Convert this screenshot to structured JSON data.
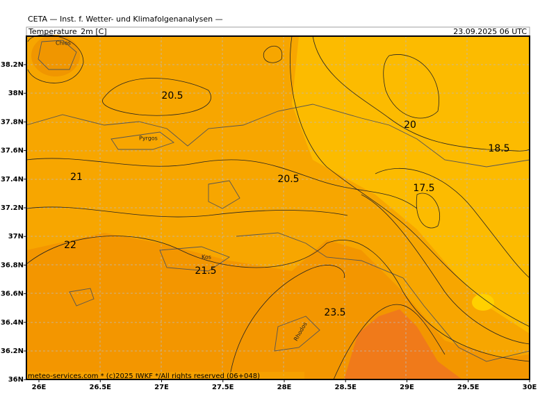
{
  "header": {
    "source": "CETA — Inst. f. Wetter- und Klimafolgenanalysen —",
    "field": "Temperature_2m [C]",
    "time": "23.09.2025 06 UTC"
  },
  "contour_labels": [
    "20.5",
    "20",
    "18.5",
    "21",
    "20.5",
    "17.5",
    "22",
    "21.5",
    "23.5"
  ],
  "places": [
    "Chios",
    "Pyrgos",
    "Kos",
    "Rhodos"
  ],
  "lon_labels": [
    "26E",
    "26.5E",
    "27E",
    "27.5E",
    "28E",
    "28.5E",
    "29E",
    "29.5E",
    "30E"
  ],
  "lat_labels": [
    "38.2N",
    "38N",
    "37.8N",
    "37.6N",
    "37.4N",
    "37.2N",
    "37N",
    "36.8N",
    "36.6N",
    "36.4N",
    "36.2N",
    "36N"
  ],
  "footer": "meteo-services.com * (c)2025 IWKF */All rights reserved (06+048)"
}
